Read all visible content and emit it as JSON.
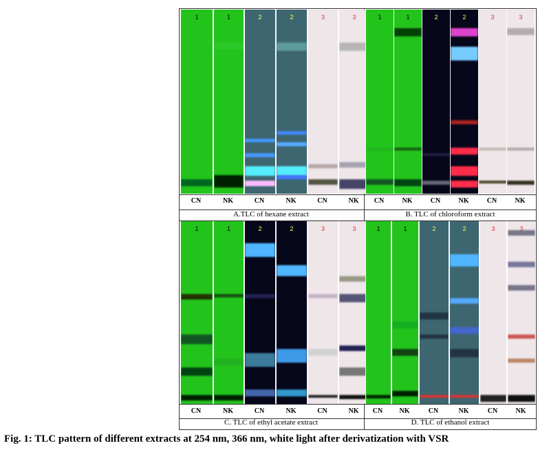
{
  "panels": [
    {
      "id": "A",
      "caption": "A.TLC of hexane extract",
      "strip_numbers": [
        "1",
        "1",
        "2",
        "2",
        "3",
        "3"
      ],
      "lanes": [
        "CN",
        "NK",
        "CN",
        "NK",
        "CN",
        "NK"
      ]
    },
    {
      "id": "B",
      "caption": "B. TLC of chloroform extract",
      "strip_numbers": [
        "1",
        "1",
        "2",
        "2",
        "3",
        "3"
      ],
      "lanes": [
        "CN",
        "NK",
        "CN",
        "NK",
        "CN",
        "NK"
      ]
    },
    {
      "id": "C",
      "caption": "C. TLC of ethyl acetate extract",
      "strip_numbers": [
        "1",
        "1",
        "2",
        "2",
        "3",
        "3"
      ],
      "lanes": [
        "CN",
        "NK",
        "CN",
        "NK",
        "CN",
        "NK"
      ]
    },
    {
      "id": "D",
      "caption": "D. TLC of ethanol extract",
      "strip_numbers": [
        "1",
        "1",
        "2",
        "2",
        "3",
        "3"
      ],
      "lanes": [
        "CN",
        "NK",
        "CN",
        "NK",
        "CN",
        "NK"
      ]
    }
  ],
  "figure_caption": "Fig. 1: TLC pattern of different extracts at 254 nm, 366 nm, white light after derivatization with VSR",
  "colors": {
    "uv254": "#22c41c",
    "uv366_hex": "#3d6670",
    "uv366_dark": "#06071a",
    "white_light": "#efe6ea",
    "blue_band": "#4fb6ff",
    "red_band": "#ff2d4a"
  }
}
